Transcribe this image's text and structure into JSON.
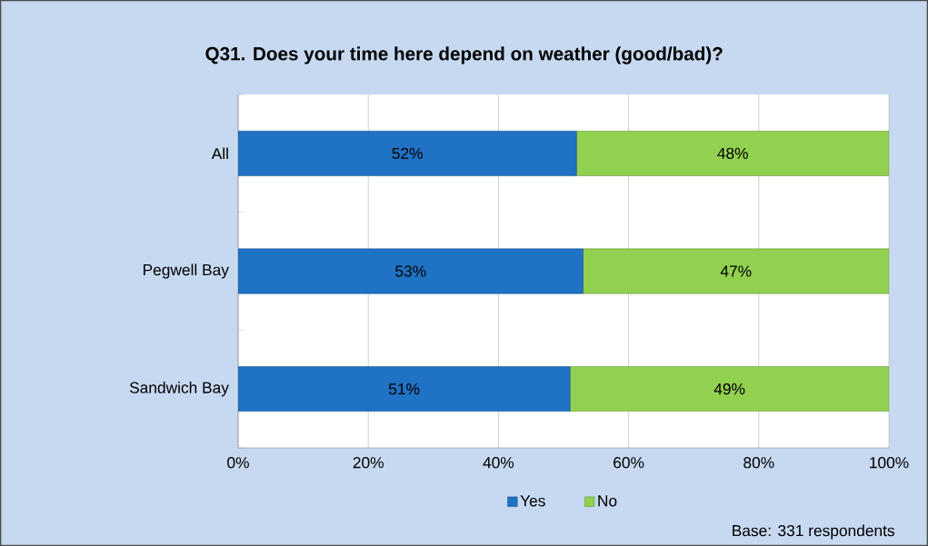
{
  "chart_data": {
    "type": "bar",
    "orientation": "horizontal",
    "stacked": true,
    "title": "Q31. Does your time here depend on weather (good/bad)?",
    "categories": [
      "All",
      "Pegwell Bay",
      "Sandwich Bay"
    ],
    "series": [
      {
        "name": "Yes",
        "color": "#1f72c4",
        "values": [
          52,
          53,
          51
        ],
        "value_labels": [
          "52%",
          "53%",
          "51%"
        ]
      },
      {
        "name": "No",
        "color": "#92d050",
        "values": [
          48,
          47,
          49
        ],
        "value_labels": [
          "48%",
          "47%",
          "49%"
        ]
      }
    ],
    "xlim": [
      0,
      100
    ],
    "xticks": [
      {
        "value": 0,
        "label": "0%"
      },
      {
        "value": 20,
        "label": "20%"
      },
      {
        "value": 40,
        "label": "40%"
      },
      {
        "value": 60,
        "label": "60%"
      },
      {
        "value": 80,
        "label": "80%"
      },
      {
        "value": 100,
        "label": "100%"
      }
    ],
    "grid": "x",
    "legend": "bottom",
    "annotations": [
      "Base:  331 respondents"
    ]
  }
}
